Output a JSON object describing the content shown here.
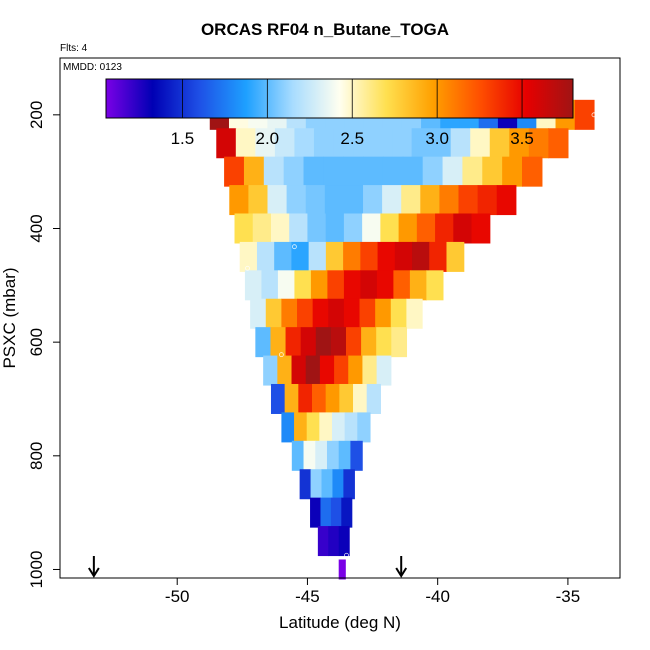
{
  "chart_data": {
    "type": "heatmap",
    "title": "ORCAS RF04 n_Butane_TOGA",
    "flights_note": "Flts: 4",
    "date_note": "MMDD: 0123",
    "xlabel": "Latitude (deg N)",
    "ylabel": "PSXC (mbar)",
    "xlim": [
      -54.5,
      -33.0
    ],
    "ylim": [
      1015,
      100
    ],
    "x_ticks": [
      -50,
      -45,
      -40,
      -35
    ],
    "x_tick_labels": [
      "-50",
      "-45",
      "-40",
      "-35"
    ],
    "y_ticks": [
      200,
      400,
      600,
      800,
      1000
    ],
    "y_tick_labels": [
      "200",
      "400",
      "600",
      "800",
      "1000"
    ],
    "colorbar": {
      "range": [
        1.05,
        3.8
      ],
      "ticks": [
        1.5,
        2.0,
        2.5,
        3.0,
        3.5
      ],
      "tick_labels": [
        "1.5",
        "2.0",
        "2.5",
        "3.0",
        "3.5"
      ],
      "colors": [
        "#7a00e6",
        "#0000b4",
        "#1e50e6",
        "#1ea0ff",
        "#a8dcff",
        "#fffff0",
        "#ffe050",
        "#ffa000",
        "#ff5000",
        "#e60000",
        "#a01414"
      ]
    },
    "bands": [
      {
        "pressure": 200,
        "lat_start": -48.75,
        "lat_end": -34.0,
        "values": [
          3.8,
          2.45,
          2.4,
          2.35,
          2.2,
          2.1,
          2.1,
          2.1,
          2.1,
          2.1,
          2.1,
          2.0,
          1.9,
          1.9,
          1.7,
          1.3,
          1.8,
          2.5,
          3.0,
          3.3
        ]
      },
      {
        "pressure": 250,
        "lat_start": -48.5,
        "lat_end": -35.0,
        "values": [
          3.6,
          2.5,
          2.35,
          2.25,
          2.15,
          2.1,
          2.1,
          2.1,
          2.1,
          2.1,
          2.05,
          2.05,
          2.2,
          2.5,
          2.8,
          3.0,
          3.1,
          3.2
        ]
      },
      {
        "pressure": 300,
        "lat_start": -48.2,
        "lat_end": -36.0,
        "values": [
          3.3,
          2.9,
          2.2,
          2.1,
          2.0,
          2.0,
          2.0,
          2.0,
          2.0,
          2.0,
          2.1,
          2.3,
          2.6,
          2.8,
          3.0,
          3.2
        ]
      },
      {
        "pressure": 350,
        "lat_start": -48.0,
        "lat_end": -37.0,
        "values": [
          3.0,
          2.8,
          2.3,
          2.1,
          2.05,
          2.0,
          2.0,
          2.1,
          2.3,
          2.6,
          2.9,
          3.1,
          3.3,
          3.4,
          3.5
        ]
      },
      {
        "pressure": 400,
        "lat_start": -47.8,
        "lat_end": -38.0,
        "values": [
          2.7,
          2.6,
          2.5,
          2.2,
          2.05,
          2.0,
          2.1,
          2.4,
          2.7,
          3.0,
          3.2,
          3.4,
          3.6,
          3.5
        ]
      },
      {
        "pressure": 450,
        "lat_start": -47.6,
        "lat_end": -39.0,
        "values": [
          2.5,
          2.2,
          2.0,
          1.9,
          2.2,
          2.8,
          3.1,
          3.3,
          3.5,
          3.6,
          3.7,
          3.4,
          2.8
        ]
      },
      {
        "pressure": 500,
        "lat_start": -47.4,
        "lat_end": -39.8,
        "values": [
          2.3,
          2.2,
          2.4,
          2.7,
          3.0,
          3.3,
          3.5,
          3.6,
          3.5,
          3.2,
          2.9,
          2.7
        ]
      },
      {
        "pressure": 550,
        "lat_start": -47.2,
        "lat_end": -40.6,
        "values": [
          2.3,
          2.8,
          3.1,
          3.3,
          3.5,
          3.6,
          3.5,
          3.3,
          3.0,
          2.7,
          2.5
        ]
      },
      {
        "pressure": 600,
        "lat_start": -47.0,
        "lat_end": -41.2,
        "values": [
          2.0,
          2.9,
          3.4,
          3.6,
          3.8,
          3.7,
          3.3,
          2.9,
          2.7,
          2.6
        ]
      },
      {
        "pressure": 650,
        "lat_start": -46.7,
        "lat_end": -41.8,
        "values": [
          2.1,
          2.9,
          3.6,
          3.8,
          3.5,
          3.3,
          3.0,
          2.6,
          2.3
        ]
      },
      {
        "pressure": 700,
        "lat_start": -46.4,
        "lat_end": -42.2,
        "values": [
          1.6,
          2.9,
          3.4,
          3.2,
          3.0,
          2.8,
          2.5,
          2.2
        ]
      },
      {
        "pressure": 750,
        "lat_start": -46.0,
        "lat_end": -42.6,
        "values": [
          1.8,
          2.9,
          2.7,
          2.5,
          2.3,
          2.2,
          2.1
        ]
      },
      {
        "pressure": 800,
        "lat_start": -45.6,
        "lat_end": -42.9,
        "values": [
          2.0,
          2.4,
          2.3,
          2.1,
          2.0,
          1.6
        ]
      },
      {
        "pressure": 850,
        "lat_start": -45.3,
        "lat_end": -43.2,
        "values": [
          1.5,
          2.1,
          2.0,
          1.8,
          1.5
        ]
      },
      {
        "pressure": 900,
        "lat_start": -44.9,
        "lat_end": -43.3,
        "values": [
          1.3,
          1.7,
          1.6,
          1.4
        ]
      },
      {
        "pressure": 950,
        "lat_start": -44.6,
        "lat_end": -43.4,
        "values": [
          1.2,
          1.25,
          1.3
        ]
      },
      {
        "pressure": 1000,
        "lat_start": -43.8,
        "lat_end": -43.55,
        "values": [
          1.05
        ]
      }
    ],
    "sample_points": [
      {
        "lat": -48.6,
        "pressure": 185
      },
      {
        "lat": -37.5,
        "pressure": 185
      },
      {
        "lat": -34.0,
        "pressure": 200
      },
      {
        "lat": -45.5,
        "pressure": 432
      },
      {
        "lat": -47.3,
        "pressure": 470
      },
      {
        "lat": -46.0,
        "pressure": 622
      },
      {
        "lat": -46.8,
        "pressure": 680
      },
      {
        "lat": -43.5,
        "pressure": 975
      }
    ],
    "arrows": [
      {
        "lat": -53.2
      },
      {
        "lat": -41.4
      }
    ],
    "grid": false,
    "legend": "colorbar-top"
  }
}
